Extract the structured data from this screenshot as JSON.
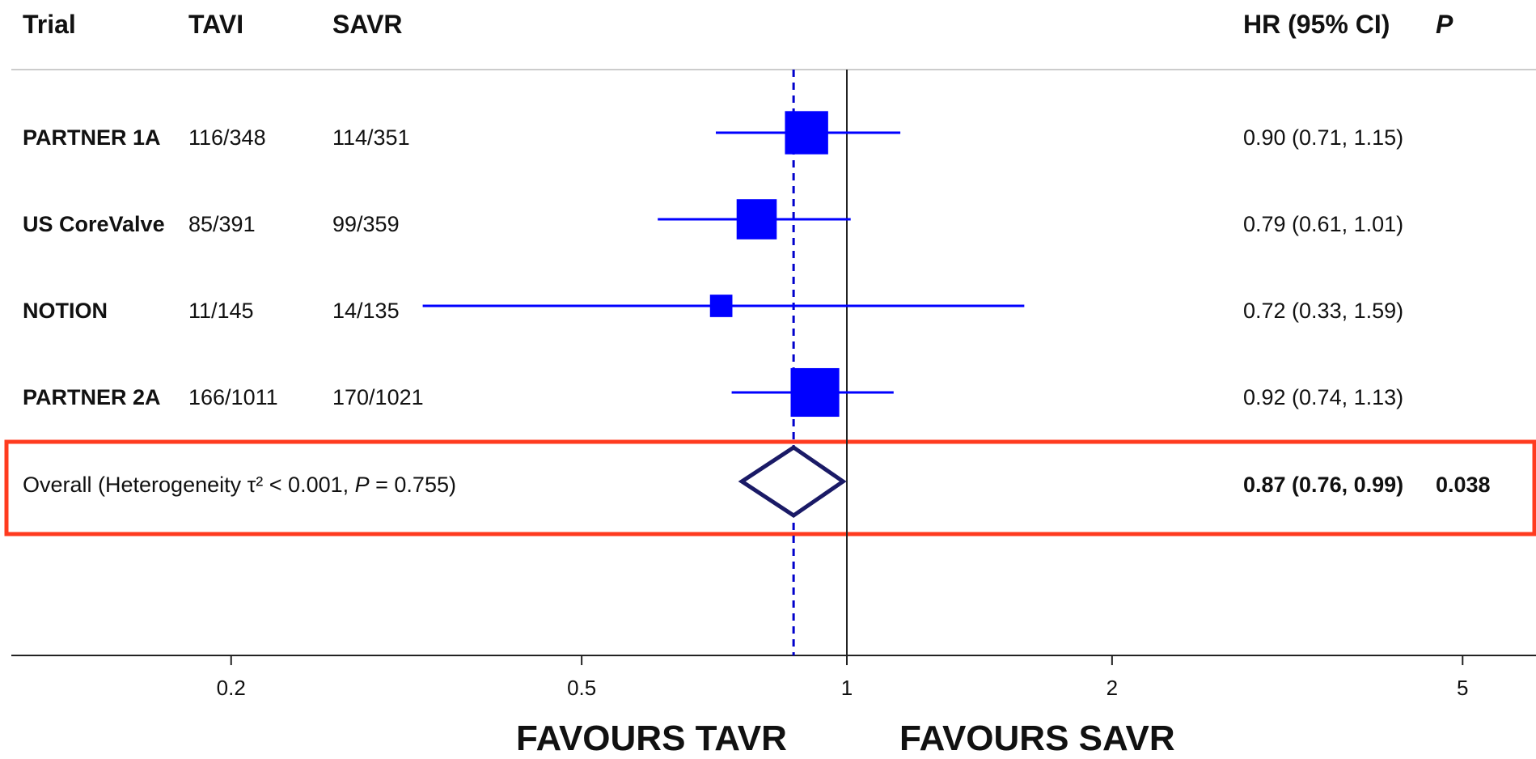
{
  "headers": {
    "trial": "Trial",
    "tavi": "TAVI",
    "savr": "SAVR",
    "hr": "HR (95% CI)",
    "p": "P"
  },
  "rows": [
    {
      "trial": "PARTNER 1A",
      "tavi": "116/348",
      "savr": "114/351",
      "hr_text": "0.90 (0.71, 1.15)"
    },
    {
      "trial": "US CoreValve",
      "tavi": "85/391",
      "savr": "99/359",
      "hr_text": "0.79 (0.61, 1.01)"
    },
    {
      "trial": "NOTION",
      "tavi": "11/145",
      "savr": "14/135",
      "hr_text": "0.72 (0.33, 1.59)"
    },
    {
      "trial": "PARTNER 2A",
      "tavi": "166/1011",
      "savr": "170/1021",
      "hr_text": "0.92 (0.74, 1.13)"
    }
  ],
  "overall": {
    "label_prefix": "Overall  (Heterogeneity τ² < 0.001, ",
    "label_p": "P",
    "label_suffix": " = 0.755)",
    "hr_text": "0.87 (0.76, 0.99)",
    "p_value": "0.038"
  },
  "favours_left": "FAVOURS TAVR",
  "favours_right": "FAVOURS SAVR",
  "colors": {
    "marker": "#0000ff",
    "diamond": "#1a1a66",
    "highlight": "#ff3b1f",
    "dashed": "#0000cc"
  },
  "chart_data": {
    "type": "forest",
    "x_scale": "log",
    "xlim": [
      0.1,
      10
    ],
    "ticks": [
      0.2,
      0.5,
      1,
      2,
      5
    ],
    "tick_labels": [
      "0.2",
      "0.5",
      "1",
      "2",
      "5"
    ],
    "null_line": 1,
    "pooled_line": 0.87,
    "studies": [
      {
        "name": "PARTNER 1A",
        "hr": 0.9,
        "lo": 0.71,
        "hi": 1.15,
        "weight": 0.3
      },
      {
        "name": "US CoreValve",
        "hr": 0.79,
        "lo": 0.61,
        "hi": 1.01,
        "weight": 0.25
      },
      {
        "name": "NOTION",
        "hr": 0.72,
        "lo": 0.33,
        "hi": 1.59,
        "weight": 0.05
      },
      {
        "name": "PARTNER 2A",
        "hr": 0.92,
        "lo": 0.74,
        "hi": 1.13,
        "weight": 0.4
      }
    ],
    "overall": {
      "hr": 0.87,
      "lo": 0.76,
      "hi": 0.99
    }
  }
}
